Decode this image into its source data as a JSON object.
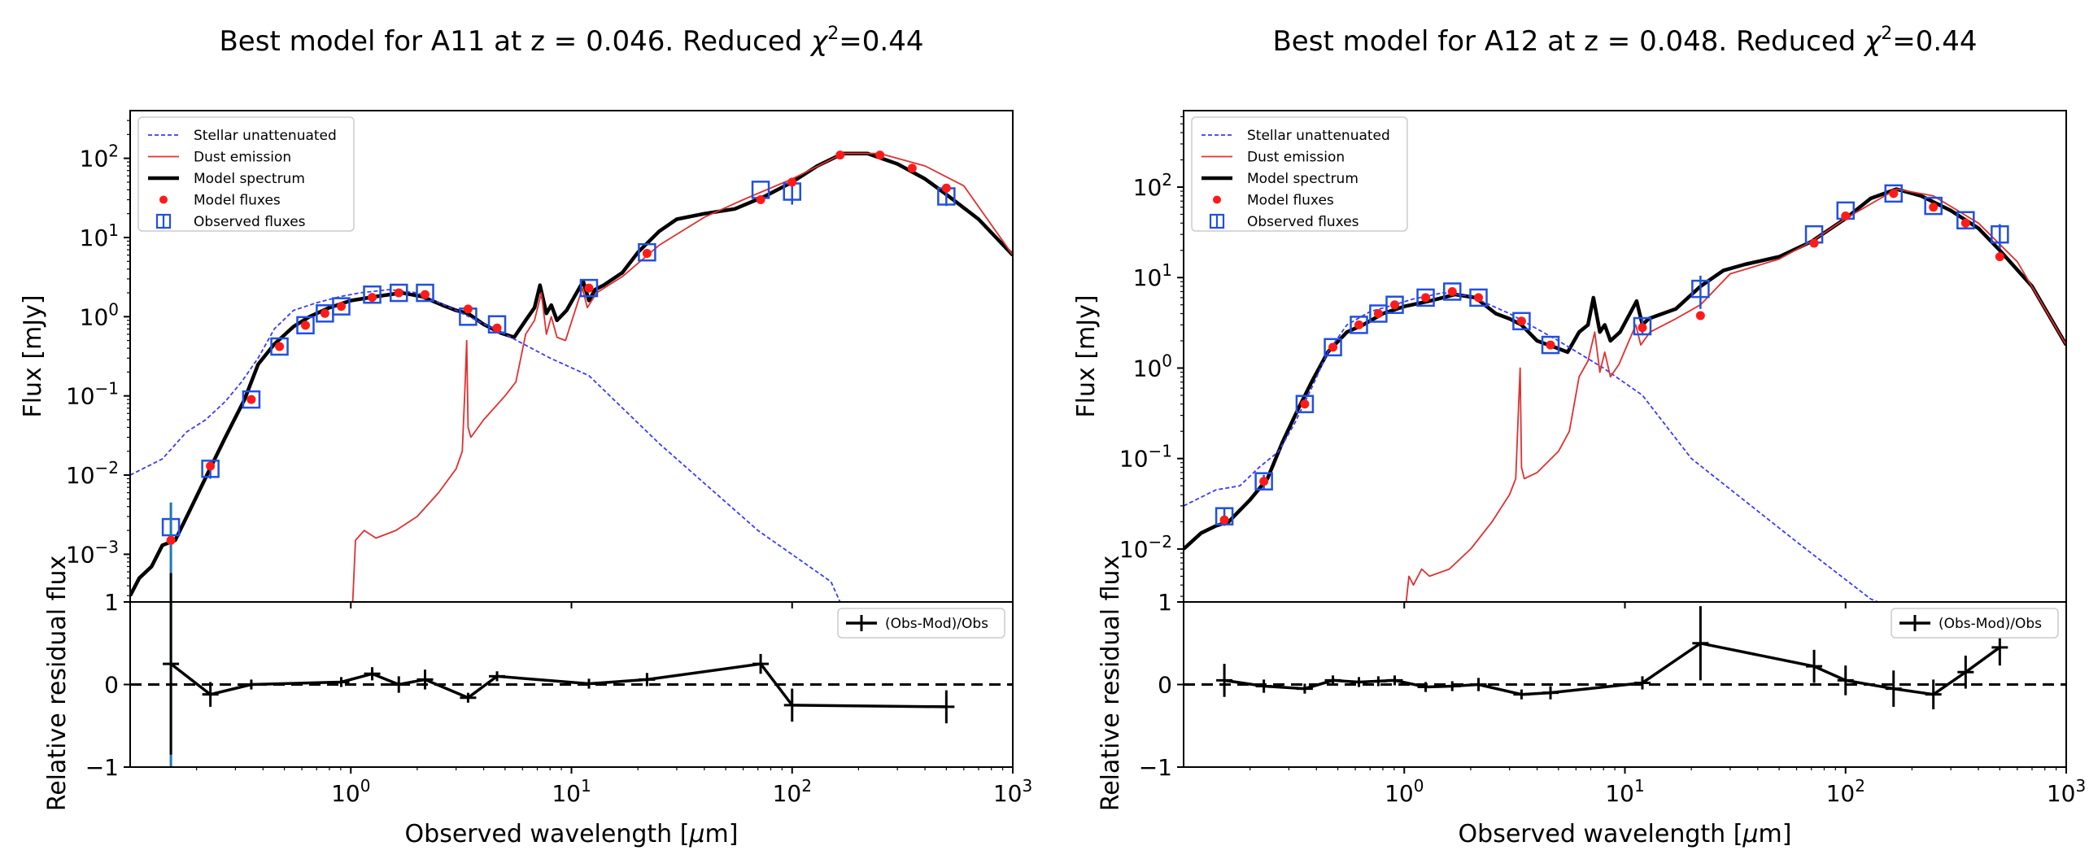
{
  "chart_data": [
    {
      "type": "line",
      "object": "A11",
      "title": "Best model for A11 at z = 0.046. Reduced χ²=0.44",
      "title_main": "Best model for A11 at z = 0.046. Reduced ",
      "title_chi": "χ",
      "title_exp": "2",
      "title_tail": "=0.44",
      "xlabel": "Observed wavelength [μm]",
      "xlabel_main": "Observed wavelength [",
      "xlabel_mu": "μ",
      "xlabel_tail": "m]",
      "ylabel": "Flux [mJy]",
      "ylabel_res": "Relative residual flux",
      "xscale": "log",
      "xlim": [
        0.1,
        1000
      ],
      "ylim": [
        0.00025,
        400
      ],
      "res_ylim": [
        -1,
        1
      ],
      "legend_top": [
        "Stellar unattenuated",
        "Dust emission",
        "Model spectrum",
        "Model fluxes",
        "Observed fluxes"
      ],
      "legend_res": "(Obs-Mod)/Obs",
      "legend_position": "top-left",
      "yticks": [
        {
          "v": 100,
          "base": "10",
          "exp": "2"
        },
        {
          "v": 10,
          "base": "10",
          "exp": "1"
        },
        {
          "v": 1,
          "base": "10",
          "exp": "0"
        },
        {
          "v": 0.1,
          "base": "10",
          "exp": "−1"
        },
        {
          "v": 0.01,
          "base": "10",
          "exp": "−2"
        },
        {
          "v": 0.001,
          "base": "10",
          "exp": "−3"
        }
      ],
      "xticks": [
        {
          "v": 1,
          "base": "10",
          "exp": "0"
        },
        {
          "v": 10,
          "base": "10",
          "exp": "1"
        },
        {
          "v": 100,
          "base": "10",
          "exp": "2"
        },
        {
          "v": 1000,
          "base": "10",
          "exp": "3"
        }
      ],
      "res_ticks": [
        "1",
        "0",
        "−1"
      ],
      "series": [
        {
          "name": "Model spectrum",
          "color": "#000000",
          "style": "thick",
          "x": [
            0.1,
            0.11,
            0.125,
            0.14,
            0.16,
            0.19,
            0.23,
            0.27,
            0.33,
            0.38,
            0.45,
            0.55,
            0.65,
            0.8,
            1.0,
            1.3,
            1.7,
            2.1,
            2.6,
            3.0,
            3.4,
            4.0,
            4.8,
            5.5,
            6.2,
            6.8,
            7.2,
            7.7,
            8.1,
            8.6,
            9.5,
            11.3,
            12.0,
            12.8,
            14,
            17,
            20,
            25,
            30,
            40,
            55,
            75,
            100,
            130,
            170,
            220,
            300,
            400,
            500,
            700,
            1000
          ],
          "y": [
            0.0003,
            0.0005,
            0.0007,
            0.0013,
            0.0015,
            0.004,
            0.012,
            0.03,
            0.09,
            0.25,
            0.45,
            0.75,
            1.0,
            1.3,
            1.6,
            1.8,
            2.0,
            1.8,
            1.4,
            1.2,
            1.1,
            0.8,
            0.62,
            0.55,
            0.9,
            1.3,
            2.5,
            1.1,
            1.4,
            0.9,
            1.2,
            2.8,
            1.6,
            2.2,
            2.5,
            3.6,
            6.5,
            12,
            17,
            20,
            23,
            33,
            50,
            80,
            115,
            115,
            85,
            55,
            35,
            17,
            6
          ]
        },
        {
          "name": "Stellar unattenuated",
          "color": "#3a3aff",
          "style": "dashed",
          "x": [
            0.1,
            0.14,
            0.18,
            0.22,
            0.27,
            0.32,
            0.38,
            0.45,
            0.55,
            0.7,
            0.9,
            1.1,
            1.5,
            2.0,
            3.0,
            5.0,
            8,
            12,
            25,
            70,
            150,
            165
          ],
          "y": [
            0.01,
            0.016,
            0.035,
            0.05,
            0.085,
            0.15,
            0.3,
            0.7,
            1.2,
            1.5,
            1.8,
            2.0,
            2.2,
            2.0,
            1.2,
            0.6,
            0.3,
            0.18,
            0.025,
            0.002,
            0.00045,
            0.00025
          ]
        },
        {
          "name": "Dust emission",
          "color": "#e03030",
          "style": "thin",
          "x": [
            1.02,
            1.05,
            1.15,
            1.3,
            1.6,
            2.0,
            2.5,
            3.0,
            3.2,
            3.3,
            3.35,
            3.4,
            3.5,
            4.0,
            5.0,
            5.6,
            6.2,
            6.8,
            7.3,
            7.7,
            8.1,
            8.6,
            9.4,
            11.2,
            11.8,
            13,
            17,
            25,
            40,
            60,
            100,
            170,
            250,
            400,
            600,
            1000
          ],
          "y": [
            0.00025,
            0.0015,
            0.002,
            0.0016,
            0.002,
            0.003,
            0.006,
            0.012,
            0.02,
            0.15,
            0.5,
            0.04,
            0.03,
            0.05,
            0.1,
            0.15,
            0.6,
            0.9,
            2.0,
            0.6,
            1.0,
            0.55,
            0.5,
            2.3,
            1.3,
            2.0,
            3.2,
            8,
            18,
            30,
            55,
            115,
            115,
            80,
            45,
            6
          ]
        }
      ],
      "model_fluxes": {
        "color": "#ff1a1a",
        "x": [
          0.153,
          0.231,
          0.354,
          0.475,
          0.623,
          0.763,
          0.905,
          1.25,
          1.65,
          2.17,
          3.4,
          4.6,
          12,
          22,
          72,
          100,
          165,
          250,
          350,
          500
        ],
        "y": [
          0.0015,
          0.013,
          0.09,
          0.42,
          0.78,
          1.1,
          1.35,
          1.75,
          2.0,
          1.9,
          1.25,
          0.72,
          2.3,
          6.3,
          30,
          50,
          110,
          110,
          75,
          42
        ]
      },
      "observed_fluxes": {
        "color": "#2050e0",
        "x": [
          0.153,
          0.231,
          0.354,
          0.475,
          0.623,
          0.763,
          0.905,
          1.25,
          1.65,
          2.17,
          3.4,
          4.6,
          12,
          22,
          72,
          100,
          500
        ],
        "y": [
          0.0022,
          0.012,
          0.09,
          0.42,
          0.78,
          1.1,
          1.35,
          1.9,
          2.0,
          2.0,
          1.0,
          0.8,
          2.3,
          6.5,
          40,
          38,
          33
        ],
        "err": [
          0.002,
          0.003,
          0,
          0,
          0,
          0,
          0,
          0,
          0,
          0,
          0,
          0,
          0,
          0,
          0,
          12,
          8
        ]
      },
      "residuals": {
        "label": "(Obs-Mod)/Obs",
        "x": [
          0.153,
          0.231,
          0.354,
          0.905,
          1.25,
          1.65,
          2.17,
          3.4,
          4.6,
          12,
          22,
          72,
          100,
          500
        ],
        "y": [
          0.25,
          -0.12,
          0.0,
          0.03,
          0.13,
          0.0,
          0.06,
          -0.16,
          0.1,
          0.01,
          0.06,
          0.25,
          -0.25,
          -0.27
        ],
        "err": [
          1.1,
          0.15,
          0.0,
          0.0,
          0.08,
          0.1,
          0.12,
          0.05,
          0.05,
          0.0,
          0.08,
          0.12,
          0.2,
          0.2
        ]
      }
    },
    {
      "type": "line",
      "object": "A12",
      "title": "Best model for A12 at z = 0.048. Reduced χ²=0.44",
      "title_main": "Best model for A12 at z = 0.048. Reduced ",
      "title_chi": "χ",
      "title_exp": "2",
      "title_tail": "=0.44",
      "xlabel": "Observed wavelength [μm]",
      "xlabel_main": "Observed wavelength [",
      "xlabel_mu": "μ",
      "xlabel_tail": "m]",
      "ylabel": "Flux [mJy]",
      "ylabel_res": "Relative residual flux",
      "xscale": "log",
      "xlim": [
        0.1,
        1000
      ],
      "ylim": [
        0.0026,
        700
      ],
      "res_ylim": [
        -1,
        1
      ],
      "legend_top": [
        "Stellar unattenuated",
        "Dust emission",
        "Model spectrum",
        "Model fluxes",
        "Observed fluxes"
      ],
      "legend_res": "(Obs-Mod)/Obs",
      "legend_position": "top-left",
      "yticks": [
        {
          "v": 100,
          "base": "10",
          "exp": "2"
        },
        {
          "v": 10,
          "base": "10",
          "exp": "1"
        },
        {
          "v": 1,
          "base": "10",
          "exp": "0"
        },
        {
          "v": 0.1,
          "base": "10",
          "exp": "−1"
        },
        {
          "v": 0.01,
          "base": "10",
          "exp": "−2"
        }
      ],
      "xticks": [
        {
          "v": 1,
          "base": "10",
          "exp": "0"
        },
        {
          "v": 10,
          "base": "10",
          "exp": "1"
        },
        {
          "v": 100,
          "base": "10",
          "exp": "2"
        },
        {
          "v": 1000,
          "base": "10",
          "exp": "3"
        }
      ],
      "res_ticks": [
        "1",
        "0",
        "−1"
      ],
      "series": [
        {
          "name": "Model spectrum",
          "color": "#000000",
          "style": "thick",
          "x": [
            0.1,
            0.12,
            0.14,
            0.16,
            0.2,
            0.24,
            0.28,
            0.33,
            0.38,
            0.45,
            0.55,
            0.65,
            0.8,
            1.0,
            1.3,
            1.7,
            2.1,
            2.6,
            3.0,
            3.4,
            4.0,
            4.8,
            5.5,
            6.2,
            6.8,
            7.2,
            7.7,
            8.1,
            8.6,
            9.5,
            11.3,
            12.0,
            12.8,
            14,
            17,
            22,
            28,
            35,
            50,
            70,
            100,
            130,
            170,
            220,
            300,
            400,
            500,
            700,
            1000
          ],
          "y": [
            0.01,
            0.015,
            0.018,
            0.02,
            0.035,
            0.06,
            0.15,
            0.35,
            0.7,
            1.5,
            2.5,
            3.0,
            4.0,
            4.8,
            5.5,
            6.5,
            6.0,
            4.0,
            3.5,
            3.0,
            2.0,
            1.7,
            1.5,
            2.5,
            3.0,
            6.0,
            2.5,
            3.0,
            2.0,
            2.5,
            5.5,
            3.0,
            3.5,
            3.8,
            4.5,
            8,
            12,
            14,
            17,
            25,
            45,
            75,
            95,
            80,
            55,
            35,
            20,
            8,
            1.8
          ]
        },
        {
          "name": "Stellar unattenuated",
          "color": "#3a3aff",
          "style": "dashed",
          "x": [
            0.1,
            0.14,
            0.18,
            0.22,
            0.27,
            0.32,
            0.38,
            0.45,
            0.55,
            0.7,
            0.9,
            1.1,
            1.5,
            2.0,
            3.0,
            5.0,
            8,
            12,
            20,
            60,
            130,
            140
          ],
          "y": [
            0.03,
            0.045,
            0.05,
            0.08,
            0.12,
            0.25,
            0.6,
            1.5,
            3.0,
            4.2,
            5.0,
            5.8,
            6.8,
            6.2,
            4.0,
            2.0,
            1.0,
            0.5,
            0.1,
            0.012,
            0.0028,
            0.0026
          ]
        },
        {
          "name": "Dust emission",
          "color": "#e03030",
          "style": "thin",
          "x": [
            1.02,
            1.05,
            1.1,
            1.2,
            1.3,
            1.6,
            2.0,
            2.5,
            3.0,
            3.2,
            3.3,
            3.35,
            3.4,
            3.5,
            4.0,
            5.0,
            5.6,
            6.2,
            6.8,
            7.3,
            7.7,
            8.1,
            8.6,
            9.4,
            11.2,
            11.8,
            13,
            17,
            22,
            30,
            50,
            70,
            100,
            170,
            250,
            400,
            600,
            1000
          ],
          "y": [
            0.0026,
            0.005,
            0.004,
            0.006,
            0.005,
            0.006,
            0.01,
            0.02,
            0.04,
            0.06,
            0.4,
            1.0,
            0.08,
            0.06,
            0.07,
            0.12,
            0.2,
            0.8,
            1.2,
            2.5,
            0.9,
            1.5,
            0.8,
            1.1,
            3.0,
            1.8,
            2.5,
            3.5,
            5,
            11,
            16,
            25,
            45,
            95,
            80,
            40,
            15,
            1.8
          ]
        }
      ],
      "model_fluxes": {
        "color": "#ff1a1a",
        "x": [
          0.153,
          0.231,
          0.354,
          0.475,
          0.623,
          0.763,
          0.905,
          1.25,
          1.65,
          2.17,
          3.4,
          4.6,
          12,
          22,
          72,
          100,
          165,
          250,
          350,
          500
        ],
        "y": [
          0.021,
          0.056,
          0.4,
          1.7,
          3.0,
          4.0,
          5.0,
          6.0,
          7.0,
          6.0,
          3.3,
          1.8,
          2.8,
          3.8,
          24,
          48,
          85,
          60,
          40,
          17
        ]
      },
      "observed_fluxes": {
        "color": "#2050e0",
        "x": [
          0.153,
          0.231,
          0.354,
          0.475,
          0.623,
          0.763,
          0.905,
          1.25,
          1.65,
          2.17,
          3.4,
          4.6,
          12,
          22,
          72,
          100,
          165,
          250,
          350,
          500
        ],
        "y": [
          0.023,
          0.056,
          0.4,
          1.7,
          3.0,
          4.0,
          5.0,
          6.0,
          7.0,
          6.0,
          3.3,
          1.8,
          2.9,
          7.5,
          30,
          55,
          85,
          62,
          43,
          30
        ],
        "err": [
          0.005,
          0.01,
          0,
          0,
          0,
          0,
          0,
          0,
          0,
          0,
          0,
          0,
          0.6,
          3.0,
          0,
          0,
          0,
          0,
          0,
          9
        ]
      },
      "residuals": {
        "label": "(Obs-Mod)/Obs",
        "x": [
          0.153,
          0.231,
          0.354,
          0.475,
          0.623,
          0.763,
          0.905,
          1.25,
          1.65,
          2.17,
          3.4,
          4.6,
          12,
          22,
          72,
          100,
          165,
          250,
          350,
          500
        ],
        "y": [
          0.05,
          -0.02,
          -0.05,
          0.05,
          0.03,
          0.04,
          0.05,
          -0.03,
          -0.02,
          0.0,
          -0.12,
          -0.1,
          0.02,
          0.5,
          0.22,
          0.05,
          -0.05,
          -0.12,
          0.15,
          0.45
        ],
        "err": [
          0.2,
          0.08,
          0.05,
          0,
          0,
          0,
          0,
          0.06,
          0,
          0.08,
          0,
          0.08,
          0.08,
          0.45,
          0.2,
          0.18,
          0.22,
          0.18,
          0.2,
          0.22
        ]
      }
    }
  ]
}
